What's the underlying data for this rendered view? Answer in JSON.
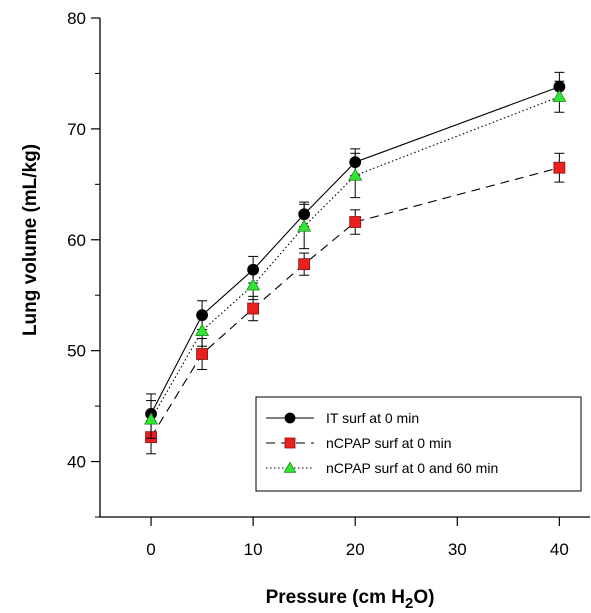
{
  "chart_data": {
    "type": "line",
    "title": "",
    "xlabel": {
      "pre": "Pressure (cm H",
      "sub": "2",
      "post": "O)"
    },
    "ylabel": "Lung volume (mL/kg)",
    "xlim": [
      -5,
      43
    ],
    "ylim": [
      35,
      80
    ],
    "xticks": [
      0,
      10,
      20,
      30,
      40
    ],
    "yticks": [
      40,
      50,
      60,
      70,
      80
    ],
    "grid": false,
    "legend_position": "bottom-right",
    "x": [
      0,
      5,
      10,
      15,
      20,
      40
    ],
    "series": [
      {
        "name": "IT surf at 0 min",
        "marker": "circle",
        "line": "solid",
        "color": "#000000",
        "values": [
          44.3,
          53.2,
          57.3,
          62.3,
          67.0,
          73.8
        ],
        "error": [
          1.8,
          1.3,
          1.2,
          1.1,
          1.2,
          1.3
        ]
      },
      {
        "name": "nCPAP surf at 0 min",
        "marker": "square",
        "line": "dashed",
        "color": "#e8201f",
        "values": [
          42.2,
          49.7,
          53.8,
          57.8,
          61.6,
          66.5
        ],
        "error": [
          1.5,
          1.4,
          1.1,
          1.0,
          1.1,
          1.3
        ]
      },
      {
        "name": "nCPAP surf at 0 and 60 min",
        "marker": "triangle",
        "line": "dotted",
        "color": "#33e633",
        "values": [
          43.8,
          51.8,
          55.9,
          61.2,
          65.8,
          72.9
        ],
        "error": [
          1.7,
          1.4,
          1.3,
          2.0,
          2.0,
          1.4
        ]
      }
    ]
  }
}
